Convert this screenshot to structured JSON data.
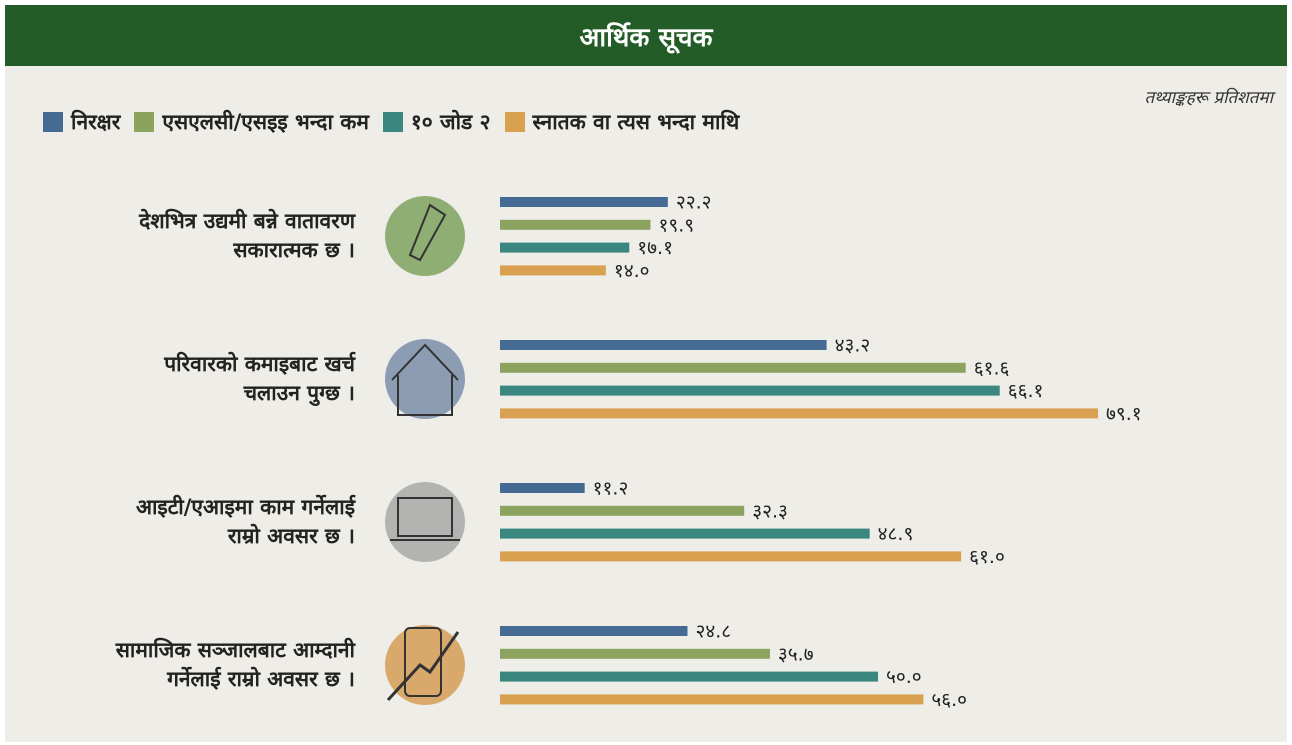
{
  "chart_data": {
    "type": "hbar_grouped",
    "title": "आर्थिक सूचक",
    "note": "तथ्याङ्कहरू प्रतिशतमा",
    "categories": [
      "देशभित्र उद्यमी बन्ने वातावरण\nसकारात्मक छ ।",
      "परिवारको कमाइबाट खर्च\nचलाउन पुग्छ ।",
      "आइटी/एआइमा काम गर्नेलाई\nराम्रो अवसर छ ।",
      "सामाजिक सञ्जालबाट आम्दानी\nगर्नेलाई राम्रो अवसर छ ।"
    ],
    "series": [
      {
        "name": "निरक्षर",
        "color": "#456b94",
        "values": [
          22.2,
          43.2,
          11.2,
          24.8
        ],
        "value_labels": [
          "२२.२",
          "४३.२",
          "११.२",
          "२४.८"
        ]
      },
      {
        "name": "एसएलसी/एसइइ भन्दा कम",
        "color": "#8ba35f",
        "values": [
          19.9,
          61.6,
          32.3,
          35.7
        ],
        "value_labels": [
          "१९.९",
          "६१.६",
          "३२.३",
          "३५.७"
        ]
      },
      {
        "name": "१० जोड २",
        "color": "#3a877f",
        "values": [
          17.1,
          66.1,
          48.9,
          50.0
        ],
        "value_labels": [
          "१७.१",
          "६६.१",
          "४८.९",
          "५०.०"
        ]
      },
      {
        "name": "स्नातक वा त्यस भन्दा माथि",
        "color": "#d8a04f",
        "values": [
          14.0,
          79.1,
          61.0,
          56.0
        ],
        "value_labels": [
          "१४.०",
          "७९.१",
          "६१.०",
          "५६.०"
        ]
      }
    ]
  }
}
